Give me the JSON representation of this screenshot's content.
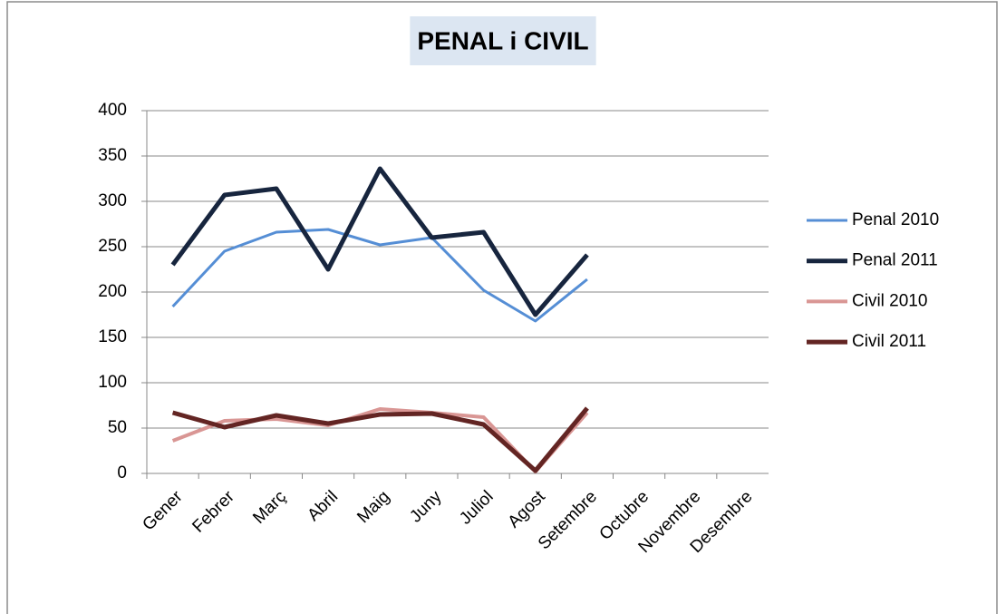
{
  "chart_data": {
    "type": "line",
    "title": "PENAL i CIVIL",
    "categories": [
      "Gener",
      "Febrer",
      "Març",
      "Abril",
      "Maig",
      "Juny",
      "Juliol",
      "Agost",
      "Setembre",
      "Octubre",
      "Novembre",
      "Desembre"
    ],
    "series": [
      {
        "name": "Penal 2010",
        "color": "#558ed5",
        "values": [
          184,
          245,
          266,
          269,
          252,
          260,
          202,
          168,
          214,
          null,
          null,
          null
        ]
      },
      {
        "name": "Penal 2011",
        "color": "#17253e",
        "values": [
          230,
          307,
          314,
          225,
          336,
          260,
          266,
          175,
          241,
          null,
          null,
          null
        ]
      },
      {
        "name": "Civil 2010",
        "color": "#d99694",
        "values": [
          36,
          58,
          60,
          53,
          71,
          67,
          62,
          2,
          67,
          null,
          null,
          null
        ]
      },
      {
        "name": "Civil 2011",
        "color": "#632523",
        "values": [
          67,
          51,
          64,
          55,
          65,
          66,
          54,
          3,
          72,
          null,
          null,
          null
        ]
      }
    ],
    "ylim": [
      0,
      400
    ],
    "yticks": [
      0,
      50,
      100,
      150,
      200,
      250,
      300,
      350,
      400
    ],
    "grid": true,
    "legend": "right"
  }
}
